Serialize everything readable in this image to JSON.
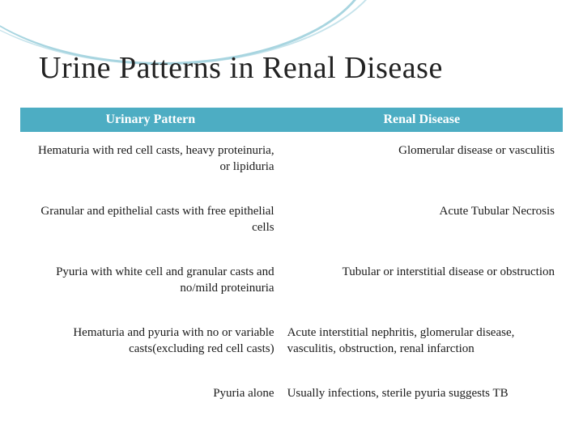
{
  "title": "Urine Patterns in Renal Disease",
  "table": {
    "headers": [
      "Urinary Pattern",
      "Renal Disease"
    ],
    "header_bg": "#4dadc3",
    "header_color": "#ffffff",
    "rows": [
      {
        "left": "Hematuria with red cell casts, heavy proteinuria, or lipiduria",
        "right": "Glomerular disease or vasculitis",
        "right_align": "right"
      },
      {
        "left": "Granular and epithelial casts with free epithelial cells",
        "right": "Acute Tubular Necrosis",
        "right_align": "right"
      },
      {
        "left": "Pyuria with white cell and granular casts and no/mild proteinuria",
        "right": "Tubular or interstitial disease or obstruction",
        "right_align": "right"
      },
      {
        "left": "Hematuria and pyuria with no or variable casts(excluding red cell casts)",
        "right": "Acute interstitial nephritis, glomerular disease, vasculitis, obstruction,  renal infarction",
        "right_align": "left"
      },
      {
        "left": "Pyuria alone",
        "right": "Usually infections, sterile pyuria suggests TB",
        "right_align": "left"
      }
    ]
  },
  "decorative_arc_color": "#a8d5e0",
  "background_color": "#ffffff",
  "title_fontsize": 38,
  "body_fontsize": 15
}
